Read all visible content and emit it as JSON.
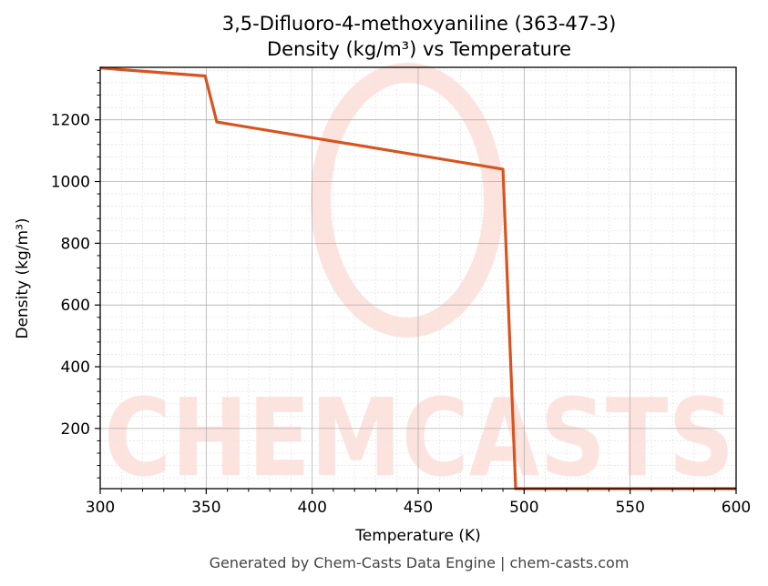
{
  "title_line1": "3,5-Difluoro-4-methoxyaniline (363-47-3)",
  "title_line2": "Density (kg/m³) vs Temperature",
  "footer": "Generated by Chem-Casts Data Engine | chem-casts.com",
  "watermark": "CHEMCASTS",
  "colors": {
    "line": "#d9531e",
    "watermark": "#fde3de",
    "grid_major": "#b0b0b0",
    "grid_minor": "#e6e6e6"
  },
  "chart_data": {
    "type": "line",
    "xlabel": "Temperature (K)",
    "ylabel": "Density (kg/m³)",
    "xlim": [
      300,
      600
    ],
    "ylim": [
      5,
      1370
    ],
    "xticks": [
      300,
      350,
      400,
      450,
      500,
      550,
      600
    ],
    "yticks": [
      200,
      400,
      600,
      800,
      1000,
      1200
    ],
    "grid": true,
    "minor_grid": true,
    "series": [
      {
        "x": [
          300,
          349.5,
          355,
          490,
          496,
          600
        ],
        "y": [
          1368,
          1342,
          1193,
          1040,
          5,
          5
        ]
      }
    ]
  }
}
